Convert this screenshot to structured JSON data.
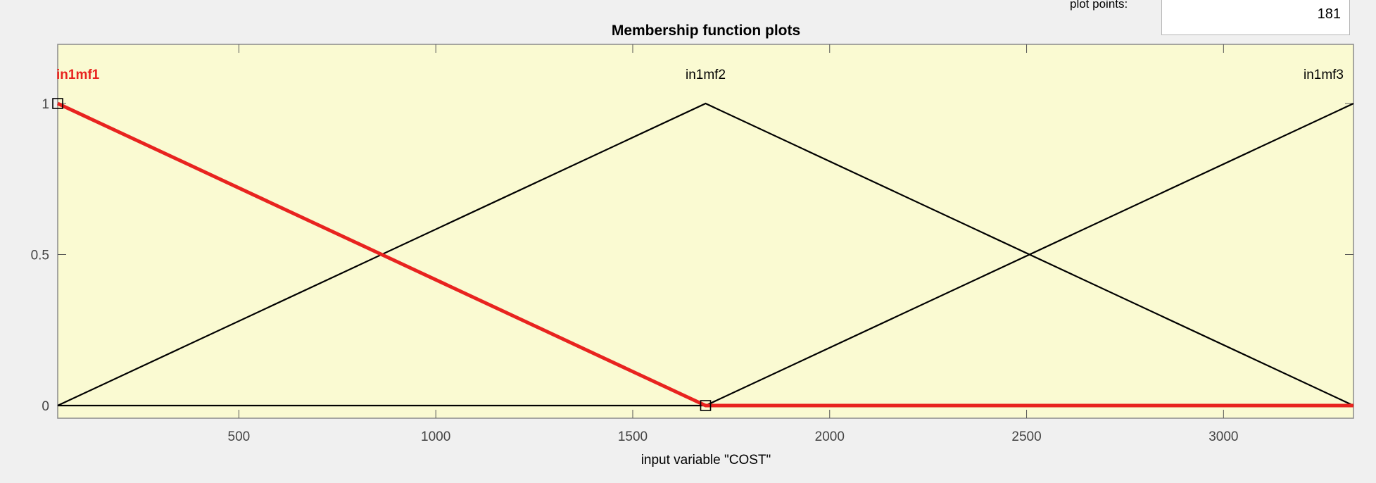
{
  "plot_points": {
    "label": "plot points:",
    "value": "181"
  },
  "chart_data": {
    "type": "line",
    "title": "Membership function plots",
    "xlabel": "input variable \"COST\"",
    "ylabel": "",
    "xlim": [
      40,
      3330
    ],
    "ylim": [
      0,
      1
    ],
    "x_ticks": [
      500,
      1000,
      1500,
      2000,
      2500,
      3000
    ],
    "x_tick_labels": [
      "500",
      "1000",
      "1500",
      "2000",
      "2500",
      "3000"
    ],
    "y_ticks": [
      0,
      0.5,
      1
    ],
    "y_tick_labels": [
      "0",
      "0.5",
      "1"
    ],
    "grid": false,
    "background_color": "#fafad2",
    "selected_color": "#e8231f",
    "line_color": "#000000",
    "series": [
      {
        "name": "in1mf1",
        "selected": true,
        "x": [
          40,
          1685,
          3330
        ],
        "y": [
          1,
          0,
          0
        ]
      },
      {
        "name": "in1mf2",
        "selected": false,
        "x": [
          40,
          1685,
          3330
        ],
        "y": [
          0,
          1,
          0
        ]
      },
      {
        "name": "in1mf3",
        "selected": false,
        "x": [
          40,
          1685,
          3330
        ],
        "y": [
          0,
          0,
          1
        ]
      }
    ],
    "selected_handles": [
      {
        "x": 40,
        "y": 1
      },
      {
        "x": 1685,
        "y": 0
      }
    ]
  }
}
